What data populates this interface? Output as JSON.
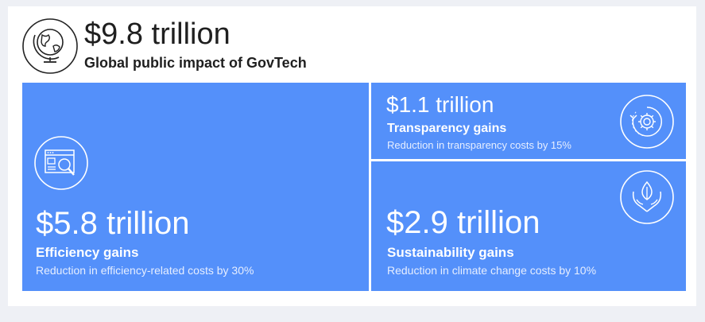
{
  "header": {
    "total": "$9.8 trillion",
    "title": "Global public impact of GovTech",
    "icon": "globe-icon"
  },
  "tiles": [
    {
      "amount": "$5.8 trillion",
      "label": "Efficiency gains",
      "description": "Reduction in efficiency-related costs by 30%",
      "icon": "browser-magnifier-icon"
    },
    {
      "amount": "$1.1 trillion",
      "label": "Transparency gains",
      "description": "Reduction in transparency costs by 15%",
      "icon": "gear-cycle-icon"
    },
    {
      "amount": "$2.9 trillion",
      "label": "Sustainability gains",
      "description": "Reduction in climate change costs by 10%",
      "icon": "hands-leaf-icon"
    }
  ],
  "colors": {
    "tile_blue": "#5490fa",
    "text_dark": "#1f1f1f",
    "page_background": "#eef0f5"
  }
}
